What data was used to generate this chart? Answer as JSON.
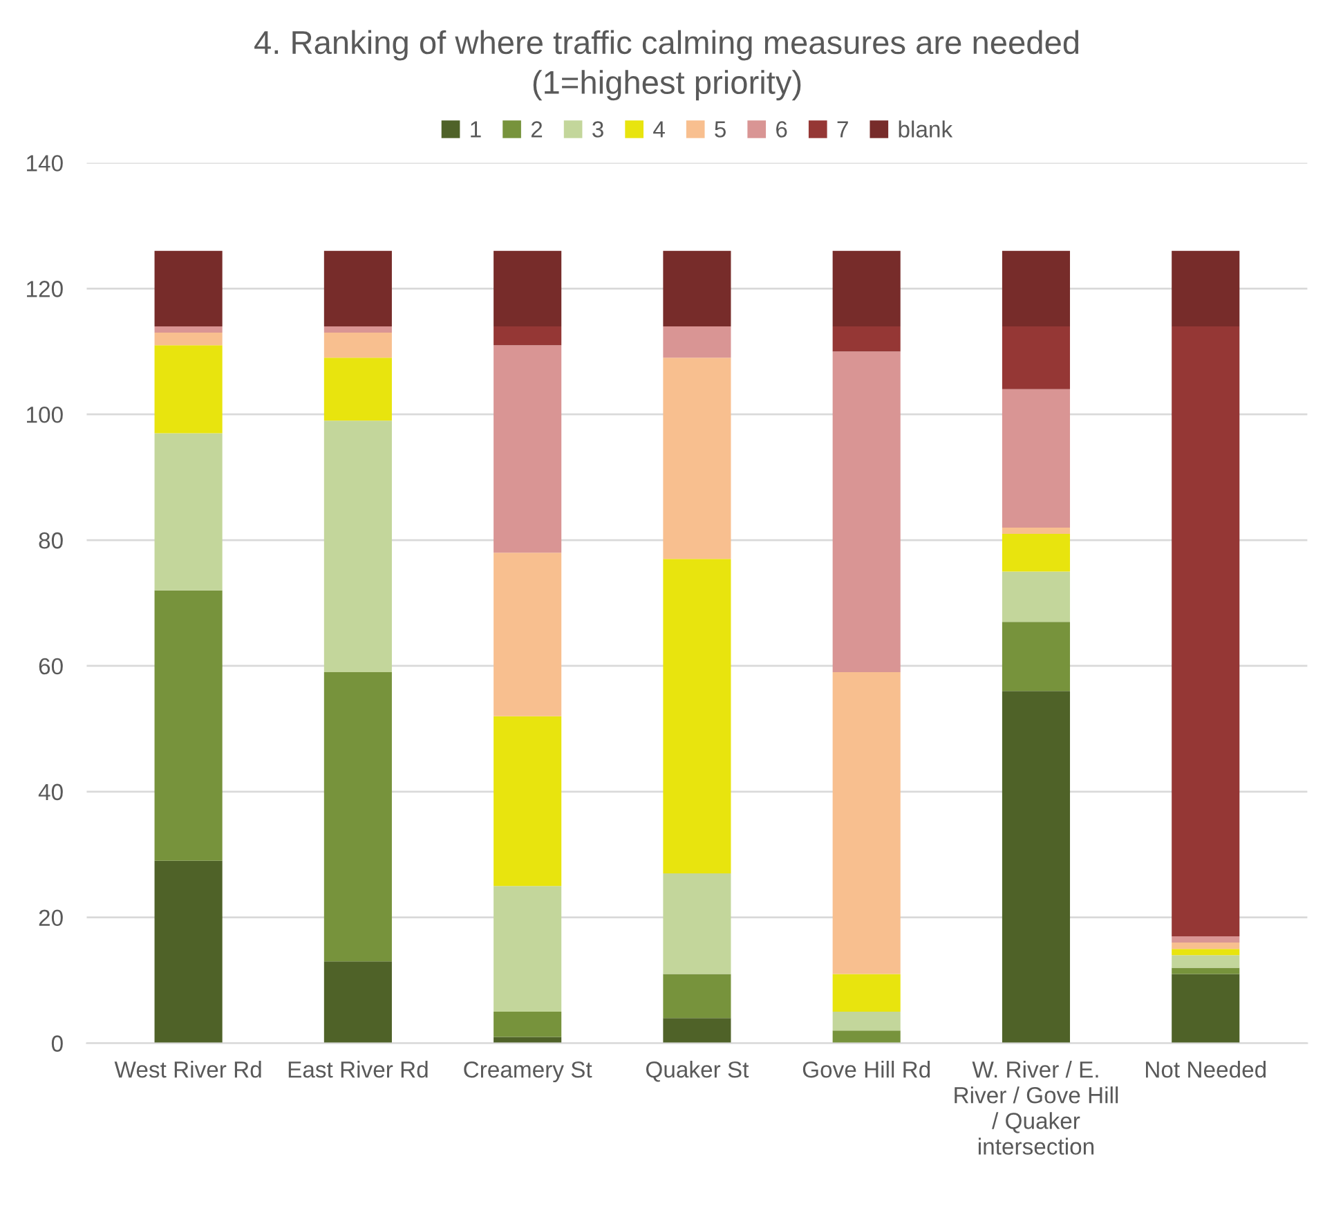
{
  "chart_data": {
    "type": "bar",
    "stacked": true,
    "title": "4. Ranking of where traffic calming measures are needed\n(1=highest priority)",
    "categories": [
      "West River Rd",
      "East River Rd",
      "Creamery St",
      "Quaker St",
      "Gove Hill Rd",
      "W. River / E. River / Gove Hill / Quaker intersection",
      "Not Needed"
    ],
    "series": [
      {
        "name": "1",
        "color": "#4f6228",
        "values": [
          29,
          13,
          1,
          4,
          0,
          56,
          11
        ]
      },
      {
        "name": "2",
        "color": "#77933c",
        "values": [
          43,
          46,
          4,
          7,
          2,
          11,
          1
        ]
      },
      {
        "name": "3",
        "color": "#c3d69b",
        "values": [
          25,
          40,
          20,
          16,
          3,
          8,
          2
        ]
      },
      {
        "name": "4",
        "color": "#e8e40e",
        "values": [
          14,
          10,
          27,
          50,
          6,
          6,
          1
        ]
      },
      {
        "name": "5",
        "color": "#f8bf8f",
        "values": [
          2,
          4,
          26,
          32,
          48,
          1,
          1
        ]
      },
      {
        "name": "6",
        "color": "#d99594",
        "values": [
          1,
          1,
          33,
          5,
          51,
          22,
          1
        ]
      },
      {
        "name": "7",
        "color": "#953735",
        "values": [
          0,
          0,
          3,
          0,
          4,
          10,
          97
        ]
      },
      {
        "name": "blank",
        "color": "#772c2a",
        "values": [
          12,
          12,
          12,
          12,
          12,
          12,
          12
        ]
      }
    ],
    "ylim": [
      0,
      140
    ],
    "yticks": [
      0,
      20,
      40,
      60,
      80,
      100,
      120,
      140
    ],
    "grid": "y",
    "legend": "top"
  }
}
